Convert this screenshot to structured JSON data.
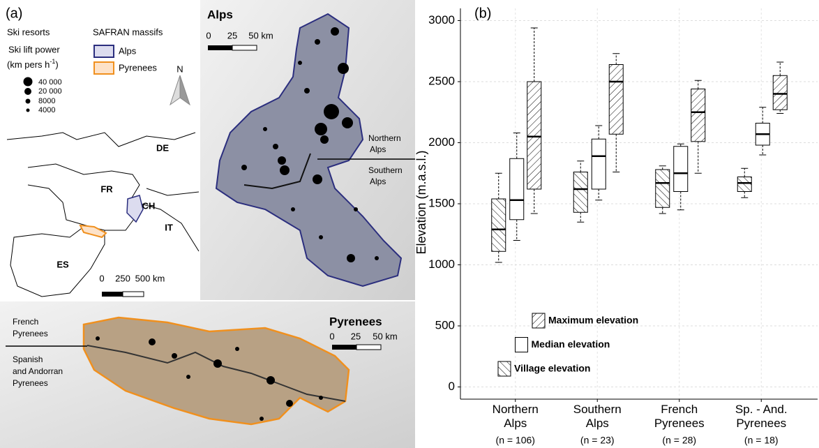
{
  "map_panel": {
    "panel_label": "(a)",
    "ski_resorts": "Ski resorts",
    "safran_massifs": "SAFRAN massifs",
    "lift_power": "Ski lift power",
    "lift_power_unit": [
      "(km pers h",
      "-1",
      ")"
    ],
    "size_legend": [
      "40 000",
      "20 000",
      "8000",
      "4000"
    ],
    "massif_legend": [
      "Alps",
      "Pyrenees"
    ],
    "north": "N",
    "countries": [
      "DE",
      "FR",
      "CH",
      "IT",
      "ES"
    ],
    "france_scale": [
      "0",
      "250",
      "500 km"
    ],
    "alps_title": "Alps",
    "alps_scale": [
      "0",
      "25",
      "50 km"
    ],
    "northern_alps": [
      "Northern",
      "Alps"
    ],
    "southern_alps": [
      "Southern",
      "Alps"
    ],
    "pyrenees_title": "Pyrenees",
    "pyrenees_scale": [
      "0",
      "25",
      "50 km"
    ],
    "french_pyrenees": [
      "French",
      "Pyrenees"
    ],
    "spanish_pyrenees": [
      "Spanish",
      "and Andorran",
      "Pyrenees"
    ]
  },
  "chart_data": {
    "type": "box",
    "panel_label": "(b)",
    "ylabel": "Elevation (m.a.s.l.)",
    "categories": [
      "Northern\nAlps",
      "Southern\nAlps",
      "French\nPyrenees",
      "Sp. - And.\nPyrenees"
    ],
    "category_notes": [
      "(n = 106)",
      "(n = 23)",
      "(n = 28)",
      "(n = 18)"
    ],
    "ylim": [
      -100,
      3100
    ],
    "yticks": [
      0,
      500,
      1000,
      1500,
      2000,
      2500,
      3000
    ],
    "grid": true,
    "series": [
      {
        "name": "Village elevation",
        "hatch": "back-diagonal",
        "color": "#000000",
        "whisker_low": [
          1020,
          1350,
          1420,
          1550
        ],
        "q1": [
          1110,
          1430,
          1470,
          1600
        ],
        "median": [
          1290,
          1620,
          1670,
          1670
        ],
        "q3": [
          1540,
          1760,
          1780,
          1720
        ],
        "whisker_high": [
          1750,
          1850,
          1810,
          1790
        ]
      },
      {
        "name": "Median elevation",
        "hatch": "none",
        "color": "#000000",
        "whisker_low": [
          1200,
          1530,
          1450,
          1900
        ],
        "q1": [
          1370,
          1620,
          1600,
          1980
        ],
        "median": [
          1530,
          1890,
          1750,
          2070
        ],
        "q3": [
          1870,
          2030,
          1970,
          2160
        ],
        "whisker_high": [
          2080,
          2140,
          1990,
          2290
        ]
      },
      {
        "name": "Maximum elevation",
        "hatch": "forward-diagonal",
        "color": "#000000",
        "whisker_low": [
          1420,
          1760,
          1750,
          2240
        ],
        "q1": [
          1620,
          2070,
          2010,
          2270
        ],
        "median": [
          2050,
          2500,
          2250,
          2400
        ],
        "q3": [
          2500,
          2640,
          2440,
          2550
        ],
        "whisker_high": [
          2940,
          2730,
          2510,
          2660
        ]
      }
    ]
  }
}
